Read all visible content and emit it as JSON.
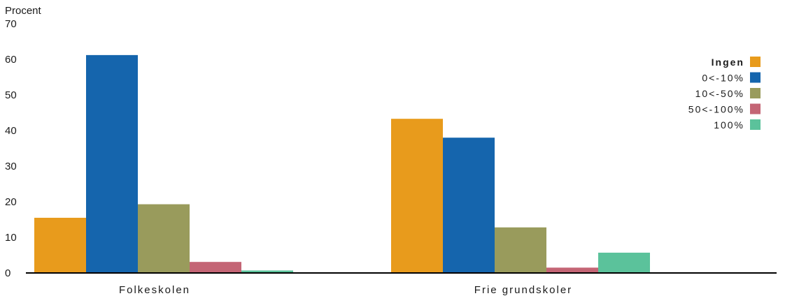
{
  "chart_data": {
    "type": "bar",
    "ylabel": "Procent",
    "ylim": [
      0,
      70
    ],
    "yticks": [
      0,
      10,
      20,
      30,
      40,
      50,
      60,
      70
    ],
    "grid": false,
    "legend_position": "top-right",
    "categories": [
      "Folkeskolen",
      "Frie grundskoler"
    ],
    "series": [
      {
        "name": "Ingen",
        "color": "#E89B1C",
        "values": [
          15.5,
          43.3
        ]
      },
      {
        "name": "0<-10%",
        "color": "#1565AD",
        "values": [
          61.2,
          38.0
        ]
      },
      {
        "name": "10<-50%",
        "color": "#999B5C",
        "values": [
          19.3,
          12.8
        ]
      },
      {
        "name": "50<-100%",
        "color": "#C46575",
        "values": [
          3.1,
          1.5
        ]
      },
      {
        "name": "100%",
        "color": "#5BC29B",
        "values": [
          0.7,
          5.7
        ]
      }
    ]
  }
}
